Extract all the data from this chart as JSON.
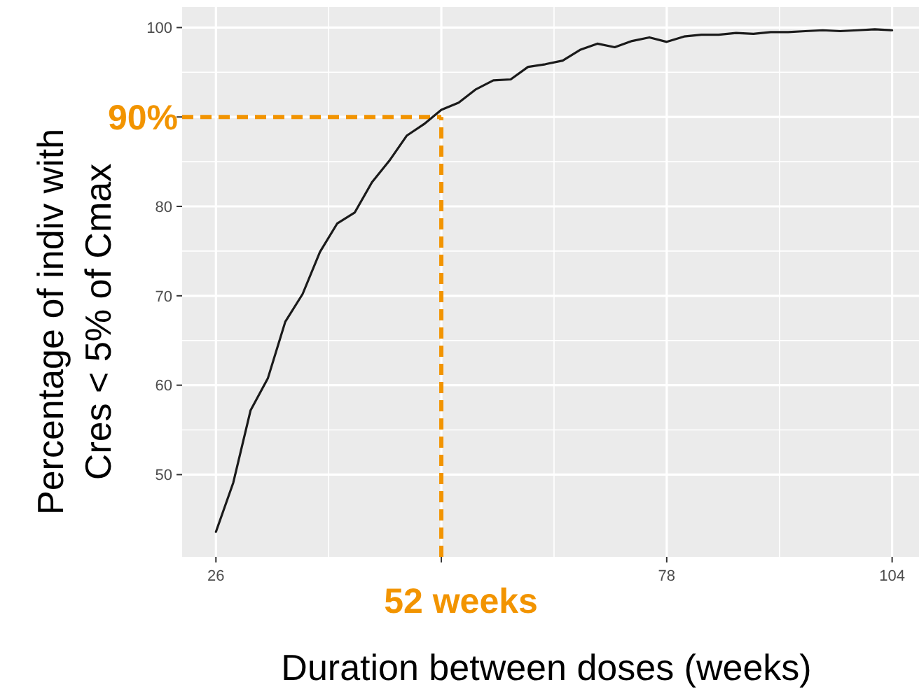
{
  "chart_data": {
    "type": "line",
    "xlabel": "Duration between doses (weeks)",
    "ylabel": "Percentage of indiv with\nCres < 5% of Cmax",
    "x": [
      26,
      28,
      30,
      32,
      34,
      36,
      38,
      40,
      42,
      44,
      46,
      48,
      50,
      52,
      54,
      56,
      58,
      60,
      62,
      64,
      66,
      68,
      70,
      72,
      74,
      76,
      78,
      80,
      82,
      84,
      86,
      88,
      90,
      92,
      94,
      96,
      98,
      100,
      102,
      104
    ],
    "series": [
      {
        "color": "#1a1a1a",
        "values": [
          43.6,
          49.1,
          57.2,
          60.8,
          67.1,
          70.2,
          74.9,
          78.1,
          79.3,
          82.7,
          85.1,
          87.9,
          89.2,
          90.8,
          91.6,
          93.1,
          94.1,
          94.2,
          95.6,
          95.9,
          96.3,
          97.5,
          98.2,
          97.8,
          98.5,
          98.9,
          98.4,
          99.0,
          99.2,
          99.2,
          99.4,
          99.3,
          99.5,
          99.5,
          99.6,
          99.7,
          99.6,
          99.7,
          99.8,
          99.7
        ]
      }
    ],
    "xlim": [
      22.1,
      107.1
    ],
    "ylim": [
      40.8,
      102.3
    ],
    "xticks": [
      26,
      {
        "value": 52,
        "label": null
      },
      78,
      104
    ],
    "yticks": [
      50,
      60,
      70,
      80,
      {
        "value": 90,
        "label": null
      },
      100
    ],
    "grid": true,
    "line_style": "solid",
    "marker": "none",
    "ref_lines": [
      {
        "axis": "y",
        "value": 90,
        "label": "90%",
        "color": "#f29400",
        "line_style": "dashed"
      },
      {
        "axis": "x",
        "value": 52,
        "label": "52 weeks",
        "color": "#f29400",
        "line_style": "dashed"
      }
    ]
  }
}
